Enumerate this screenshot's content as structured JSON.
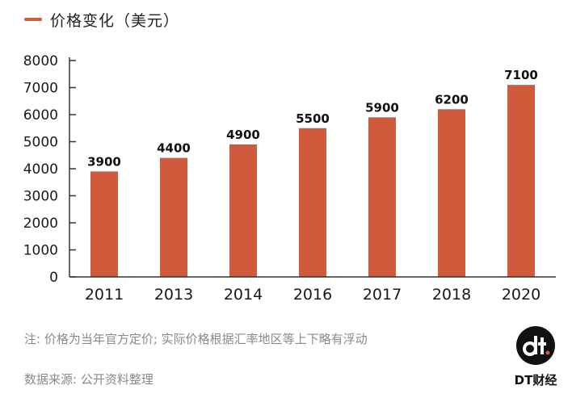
{
  "colors": {
    "bar": "#cf5a3c",
    "axis": "#333333"
  },
  "legend": {
    "label": "价格变化（美元）"
  },
  "chart_data": {
    "type": "bar",
    "title": "",
    "legend": [
      "价格变化（美元）"
    ],
    "categories": [
      "2011",
      "2013",
      "2014",
      "2016",
      "2017",
      "2018",
      "2020"
    ],
    "values": [
      3900,
      4400,
      4900,
      5500,
      5900,
      6200,
      7100
    ],
    "data_labels": [
      "3900",
      "4400",
      "4900",
      "5500",
      "5900",
      "6200",
      "7100"
    ],
    "yticks": [
      0,
      1000,
      2000,
      3000,
      4000,
      5000,
      6000,
      7000,
      8000
    ],
    "ylim": [
      0,
      8000
    ],
    "xlabel": "",
    "ylabel": "",
    "grid": false
  },
  "notes": {
    "note": "注: 价格为当年官方定价; 实际价格根据汇率地区等上下略有浮动",
    "source": "数据来源: 公开资料整理"
  },
  "logo": {
    "brand": "DT财经",
    "mark_text": "dt"
  }
}
